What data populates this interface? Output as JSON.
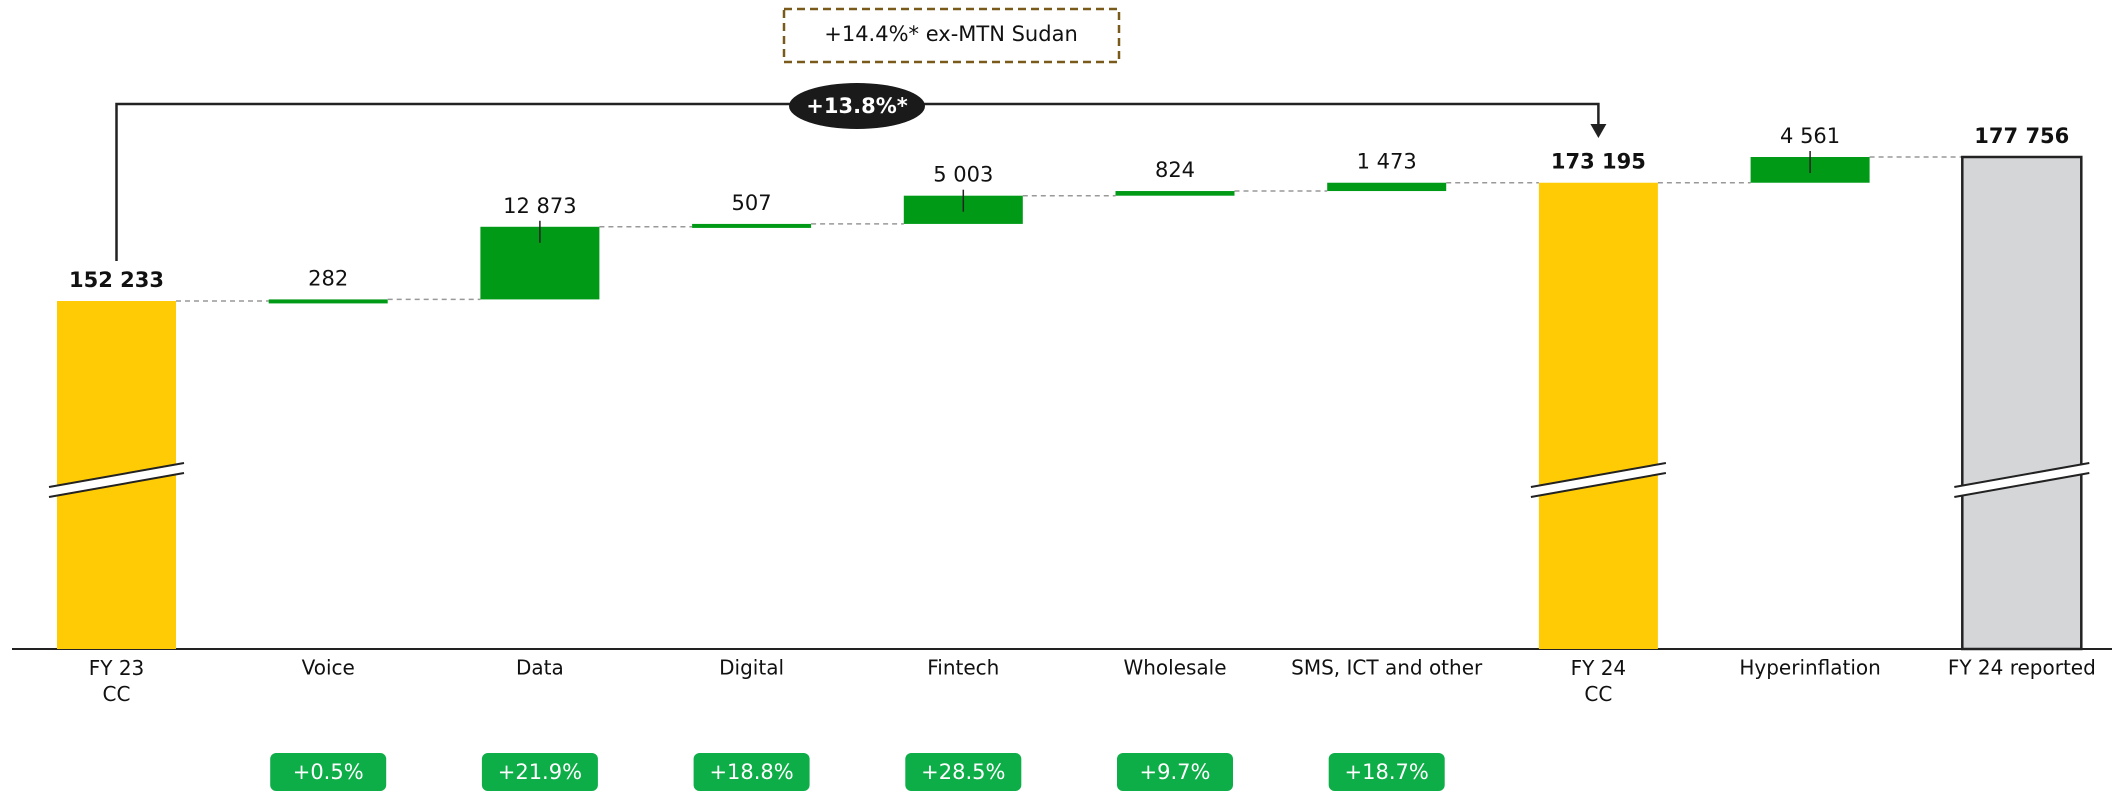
{
  "chart_data": {
    "type": "waterfall",
    "categories": [
      "FY 23\nCC",
      "Voice",
      "Data",
      "Digital",
      "Fintech",
      "Wholesale",
      "SMS, ICT and other",
      "FY 24\nCC",
      "Hyperinflation",
      "FY 24 reported"
    ],
    "values": [
      152233,
      282,
      12873,
      507,
      5003,
      824,
      1473,
      173195,
      4561,
      177756
    ],
    "value_labels": [
      "152 233",
      "282",
      "12 873",
      "507",
      "5 003",
      "824",
      "1 473",
      "173 195",
      "4 561",
      "177 756"
    ],
    "measure": [
      "total",
      "relative",
      "relative",
      "relative",
      "relative",
      "relative",
      "relative",
      "total",
      "relative",
      "total"
    ],
    "colors": [
      "#FFCB05",
      "#009A17",
      "#009A17",
      "#009A17",
      "#009A17",
      "#009A17",
      "#009A17",
      "#FFCB05",
      "#009A17",
      "#D5D6D8"
    ],
    "growth_labels": [
      null,
      "+0.5%",
      "+21.9%",
      "+18.8%",
      "+28.5%",
      "+9.7%",
      "+18.7%",
      null,
      null,
      null
    ],
    "growth_color": "#0DAD47",
    "annotations": {
      "growth": "+13.8%*",
      "ex_sudan": "+14.4%* ex-MTN Sudan"
    }
  }
}
